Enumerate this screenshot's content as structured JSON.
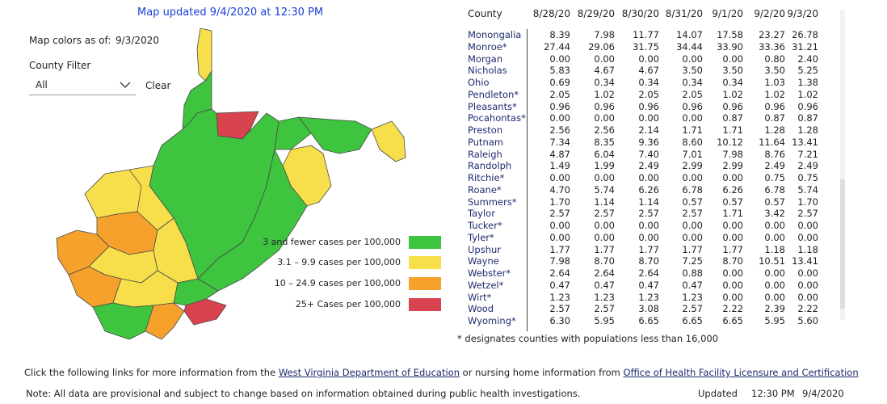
{
  "header": {
    "title": "Map updated 9/4/2020 at 12:30 PM"
  },
  "filters": {
    "colors_label": "Map colors as of:",
    "colors_date": "9/3/2020",
    "county_filter_label": "County Filter",
    "county_filter_value": "All",
    "clear": "Clear"
  },
  "legend": [
    {
      "label": "3 and fewer cases per 100,000",
      "color": "#3ec43e"
    },
    {
      "label": "3.1 – 9.9 cases per 100,000",
      "color": "#f7df4c"
    },
    {
      "label": "10 – 24.9 cases per 100,000",
      "color": "#f6a12c"
    },
    {
      "label": "25+ Cases per 100,000",
      "color": "#d9434f"
    }
  ],
  "table": {
    "columns": [
      "County",
      "8/28/20",
      "8/29/20",
      "8/30/20",
      "8/31/20",
      "9/1/20",
      "9/2/20",
      "9/3/20"
    ],
    "rows": [
      [
        "Monongalia",
        "8.39",
        "7.98",
        "11.77",
        "14.07",
        "17.58",
        "23.27",
        "26.78"
      ],
      [
        "Monroe*",
        "27.44",
        "29.06",
        "31.75",
        "34.44",
        "33.90",
        "33.36",
        "31.21"
      ],
      [
        "Morgan",
        "0.00",
        "0.00",
        "0.00",
        "0.00",
        "0.00",
        "0.80",
        "2.40"
      ],
      [
        "Nicholas",
        "5.83",
        "4.67",
        "4.67",
        "3.50",
        "3.50",
        "3.50",
        "5.25"
      ],
      [
        "Ohio",
        "0.69",
        "0.34",
        "0.34",
        "0.34",
        "0.34",
        "1.03",
        "1.38"
      ],
      [
        "Pendleton*",
        "2.05",
        "1.02",
        "2.05",
        "2.05",
        "1.02",
        "1.02",
        "1.02"
      ],
      [
        "Pleasants*",
        "0.96",
        "0.96",
        "0.96",
        "0.96",
        "0.96",
        "0.96",
        "0.96"
      ],
      [
        "Pocahontas*",
        "0.00",
        "0.00",
        "0.00",
        "0.00",
        "0.87",
        "0.87",
        "0.87"
      ],
      [
        "Preston",
        "2.56",
        "2.56",
        "2.14",
        "1.71",
        "1.71",
        "1.28",
        "1.28"
      ],
      [
        "Putnam",
        "7.34",
        "8.35",
        "9.36",
        "8.60",
        "10.12",
        "11.64",
        "13.41"
      ],
      [
        "Raleigh",
        "4.87",
        "6.04",
        "7.40",
        "7.01",
        "7.98",
        "8.76",
        "7.21"
      ],
      [
        "Randolph",
        "1.49",
        "1.99",
        "2.49",
        "2.99",
        "2.99",
        "2.49",
        "2.49"
      ],
      [
        "Ritchie*",
        "0.00",
        "0.00",
        "0.00",
        "0.00",
        "0.00",
        "0.75",
        "0.75"
      ],
      [
        "Roane*",
        "4.70",
        "5.74",
        "6.26",
        "6.78",
        "6.26",
        "6.78",
        "5.74"
      ],
      [
        "Summers*",
        "1.70",
        "1.14",
        "1.14",
        "0.57",
        "0.57",
        "0.57",
        "1.70"
      ],
      [
        "Taylor",
        "2.57",
        "2.57",
        "2.57",
        "2.57",
        "1.71",
        "3.42",
        "2.57"
      ],
      [
        "Tucker*",
        "0.00",
        "0.00",
        "0.00",
        "0.00",
        "0.00",
        "0.00",
        "0.00"
      ],
      [
        "Tyler*",
        "0.00",
        "0.00",
        "0.00",
        "0.00",
        "0.00",
        "0.00",
        "0.00"
      ],
      [
        "Upshur",
        "1.77",
        "1.77",
        "1.77",
        "1.77",
        "1.77",
        "1.18",
        "1.18"
      ],
      [
        "Wayne",
        "7.98",
        "8.70",
        "8.70",
        "7.25",
        "8.70",
        "10.51",
        "13.41"
      ],
      [
        "Webster*",
        "2.64",
        "2.64",
        "2.64",
        "0.88",
        "0.00",
        "0.00",
        "0.00"
      ],
      [
        "Wetzel*",
        "0.47",
        "0.47",
        "0.47",
        "0.47",
        "0.00",
        "0.00",
        "0.00"
      ],
      [
        "Wirt*",
        "1.23",
        "1.23",
        "1.23",
        "1.23",
        "0.00",
        "0.00",
        "0.00"
      ],
      [
        "Wood",
        "2.57",
        "2.57",
        "3.08",
        "2.57",
        "2.22",
        "2.39",
        "2.22"
      ],
      [
        "Wyoming*",
        "6.30",
        "5.95",
        "6.65",
        "6.65",
        "6.65",
        "5.95",
        "5.60"
      ]
    ]
  },
  "footnote": "* designates counties with populations less than 16,000",
  "footer": {
    "links_line": [
      "Click the following links for more information from the ",
      "West Virginia Department of Education",
      " or nursing home information from ",
      "Office of Health Facility Licensure and Certification"
    ],
    "note": "Note: All data are provisional and subject to change based on information obtained during public health investigations.",
    "updated_label": "Updated",
    "updated_time": "12:30 PM",
    "updated_date": "9/4/2020"
  }
}
